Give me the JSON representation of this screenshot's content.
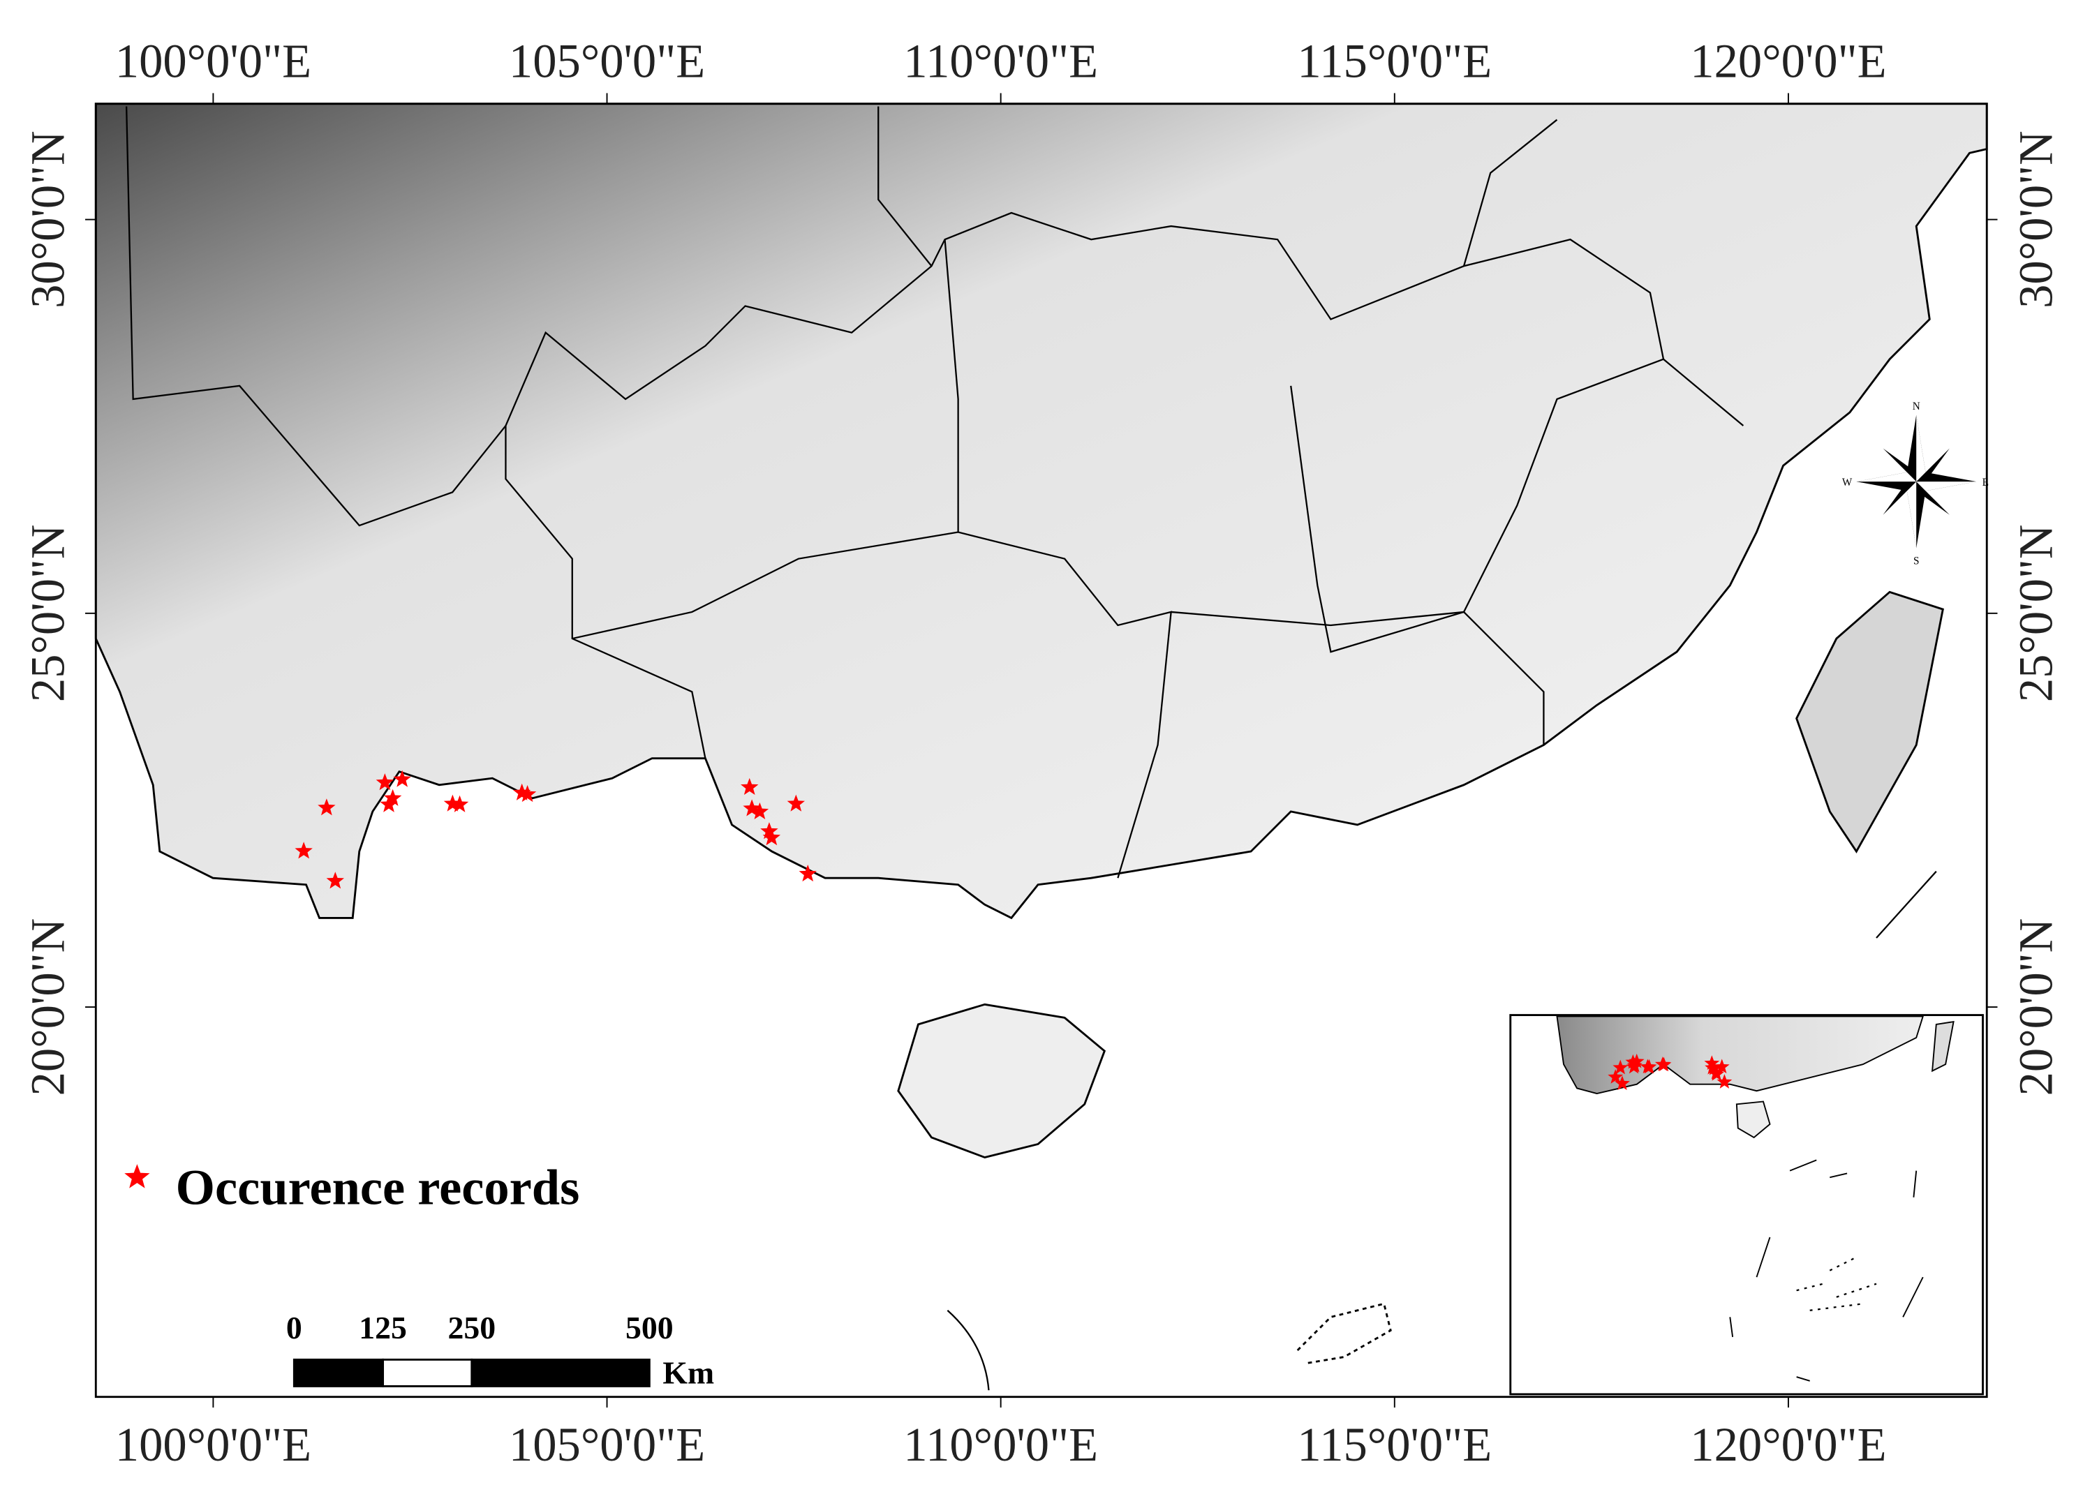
{
  "map": {
    "lonlim": [
      98.51,
      122.52
    ],
    "latlim": [
      15.05,
      31.47
    ],
    "lon_ticks": [
      {
        "value": 100,
        "label": "100°0'0\"E"
      },
      {
        "value": 105,
        "label": "105°0'0\"E"
      },
      {
        "value": 110,
        "label": "110°0'0\"E"
      },
      {
        "value": 115,
        "label": "115°0'0\"E"
      },
      {
        "value": 120,
        "label": "120°0'0\"E"
      }
    ],
    "lat_ticks": [
      {
        "value": 20,
        "label": "20°0'0\"N"
      },
      {
        "value": 25,
        "label": "25°0'0\"N"
      },
      {
        "value": 30,
        "label": "30°0'0\"N"
      }
    ],
    "legend": "Occurence records",
    "records": {
      "color": "#ff0000",
      "lon": [
        101.15,
        101.44,
        101.55,
        102.18,
        102.23,
        102.28,
        102.4,
        103.04,
        103.13,
        103.92,
        103.99,
        106.81,
        106.84,
        106.94,
        107.06,
        107.09,
        107.4,
        107.55
      ],
      "lat": [
        21.98,
        22.53,
        21.6,
        22.85,
        22.57,
        22.65,
        22.89,
        22.58,
        22.57,
        22.72,
        22.7,
        22.79,
        22.52,
        22.48,
        22.23,
        22.15,
        22.58,
        21.69
      ]
    },
    "scale_bar": {
      "ticks": [
        0,
        125,
        250,
        500
      ],
      "unit": "Km"
    },
    "compass": {
      "n": "N",
      "s": "S",
      "e": "E",
      "w": "W"
    }
  }
}
